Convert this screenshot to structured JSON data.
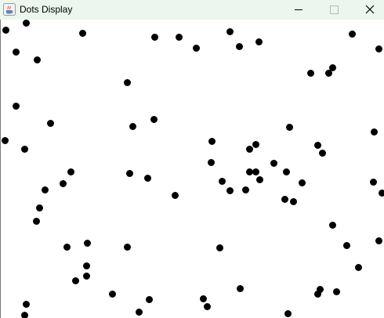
{
  "window": {
    "title": "Dots Display",
    "titlebar_color": "#eaf6ee",
    "background_color": "#ffffff",
    "dot_color": "#000000",
    "app_icon": "java-cup-icon",
    "controls": {
      "minimize_icon": "minimize-icon",
      "maximize_icon": "maximize-icon",
      "close_icon": "close-icon"
    }
  }
}
